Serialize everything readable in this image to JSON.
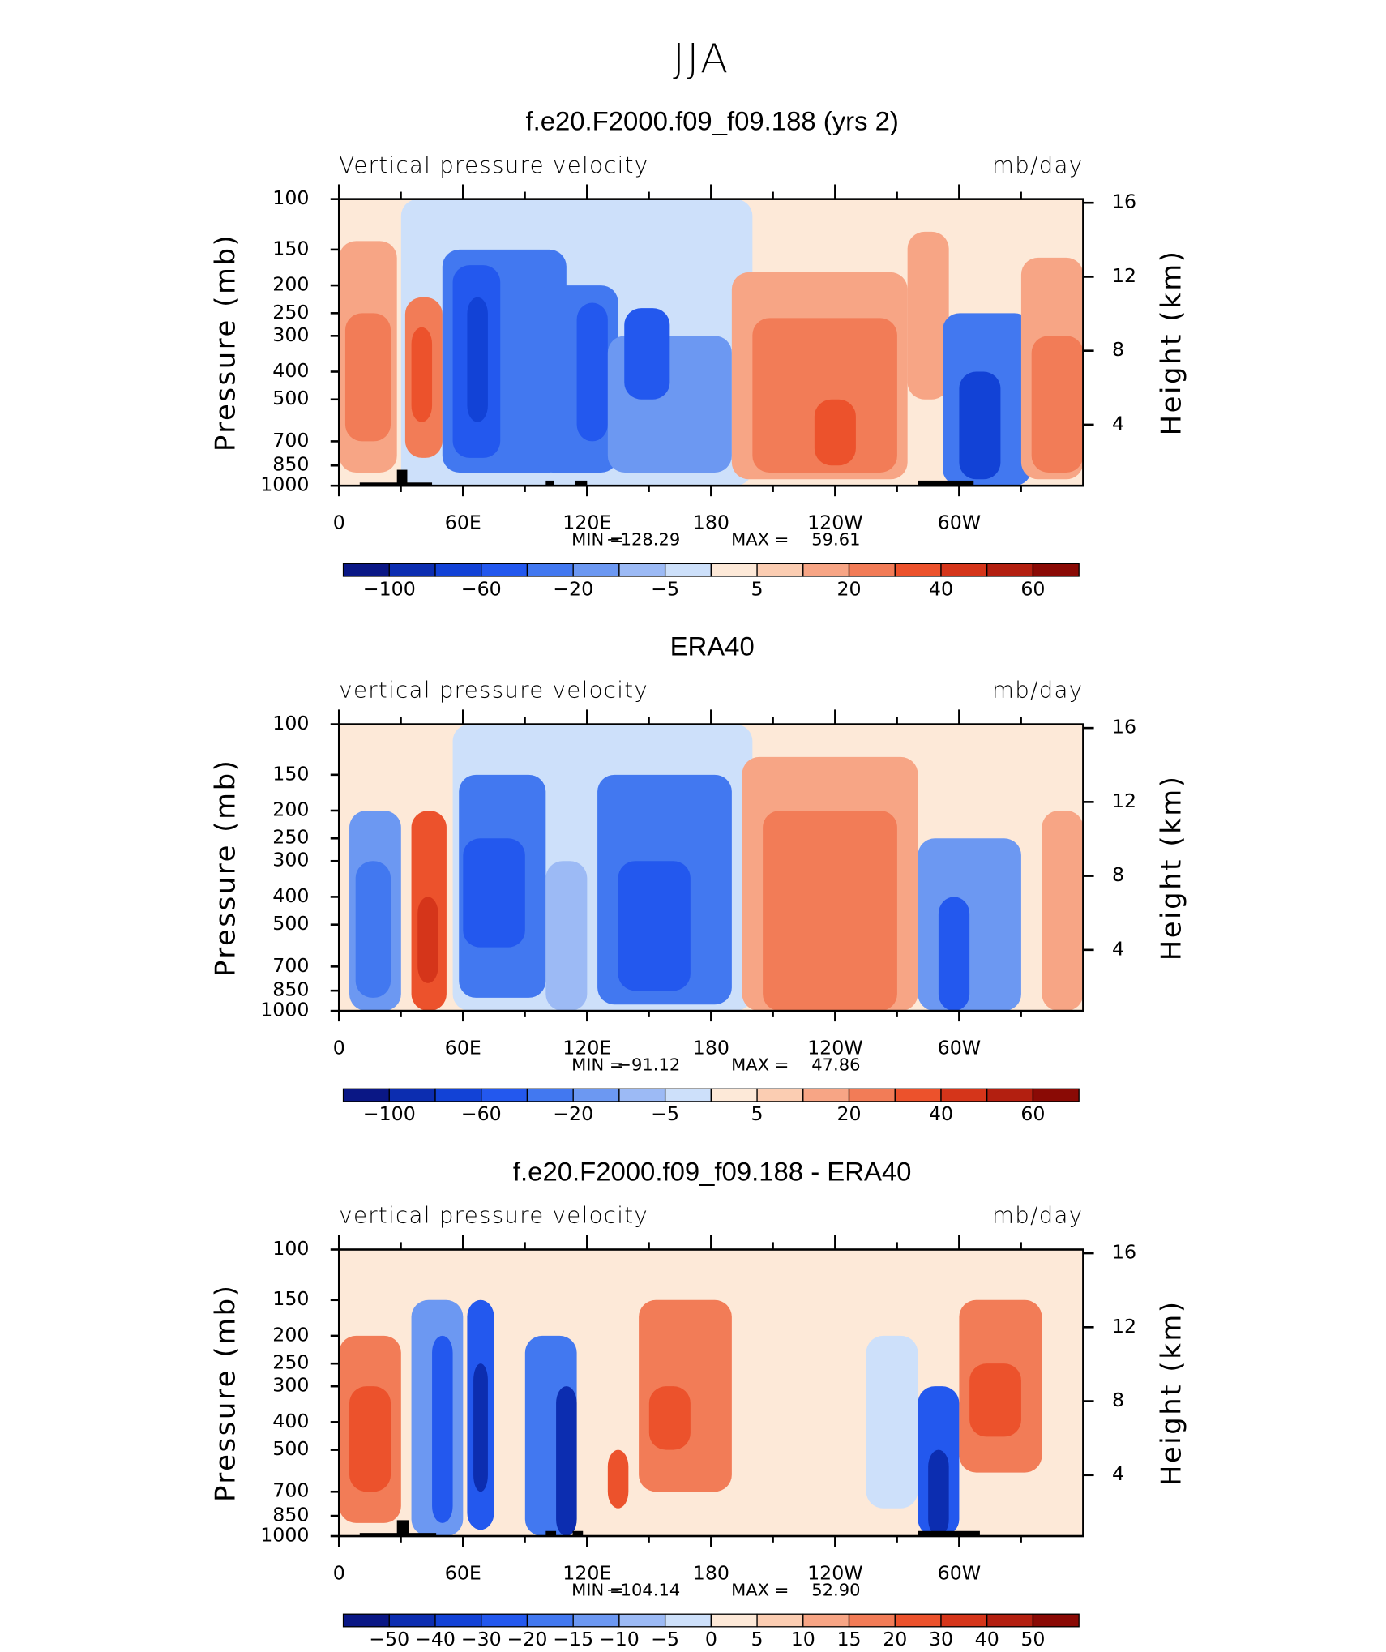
{
  "title": "JJA",
  "chart_data": [
    {
      "type": "contour",
      "title": "f.e20.F2000.f09_f09.188 (yrs 2)",
      "long_name": "Vertical pressure velocity",
      "units": "mb/day",
      "ylabel": "Pressure (mb)",
      "y2label": "Height (km)",
      "xlim": [
        0,
        360
      ],
      "xticks": [
        0,
        {
          "value": 60,
          "label": "60E"
        },
        {
          "value": 120,
          "label": "120E"
        },
        180,
        {
          "value": 240,
          "label": "120W"
        },
        {
          "value": 300,
          "label": "60W"
        }
      ],
      "xminor": [
        30,
        90,
        150,
        210,
        270,
        330
      ],
      "ylim": [
        1000,
        100
      ],
      "y_scale": "log",
      "yticks": [
        100,
        150,
        200,
        250,
        300,
        400,
        500,
        700,
        850,
        1000
      ],
      "y2lim": [
        0.7,
        16.2
      ],
      "y2ticks": [
        4,
        8,
        12,
        16
      ],
      "stats": [
        {
          "name": "MIN =",
          "value": -128.29,
          "label": "−128.29"
        },
        {
          "name": "MAX =",
          "value": 59.61,
          "label": "59.61"
        }
      ],
      "colorbar": {
        "colors": [
          "#0a1785",
          "#0c2db0",
          "#1242d6",
          "#2358ee",
          "#4278f0",
          "#6c98f2",
          "#9cbaf5",
          "#cde0fa",
          "#fde9d8",
          "#fbcdb2",
          "#f7a585",
          "#f27c57",
          "#ec522c",
          "#d5351a",
          "#b31f10",
          "#8a0a05"
        ],
        "labels": [
          {
            "value": -100,
            "label": "−100"
          },
          {
            "value": -60,
            "label": "−60"
          },
          {
            "value": -20,
            "label": "−20"
          },
          {
            "value": -5,
            "label": "−5"
          },
          5,
          20,
          40,
          60
        ]
      }
    },
    {
      "type": "contour",
      "title": "ERA40",
      "long_name": "vertical pressure velocity",
      "units": "mb/day",
      "ylabel": "Pressure (mb)",
      "y2label": "Height (km)",
      "xlim": [
        0,
        360
      ],
      "xticks": [
        0,
        {
          "value": 60,
          "label": "60E"
        },
        {
          "value": 120,
          "label": "120E"
        },
        180,
        {
          "value": 240,
          "label": "120W"
        },
        {
          "value": 300,
          "label": "60W"
        }
      ],
      "xminor": [
        30,
        90,
        150,
        210,
        270,
        330
      ],
      "ylim": [
        1000,
        100
      ],
      "y_scale": "log",
      "yticks": [
        100,
        150,
        200,
        250,
        300,
        400,
        500,
        700,
        850,
        1000
      ],
      "y2lim": [
        0.7,
        16.2
      ],
      "y2ticks": [
        4,
        8,
        12,
        16
      ],
      "stats": [
        {
          "name": "MIN =",
          "value": -91.12,
          "label": "−91.12"
        },
        {
          "name": "MAX =",
          "value": 47.86,
          "label": "47.86"
        }
      ],
      "colorbar": {
        "colors": [
          "#0a1785",
          "#0c2db0",
          "#1242d6",
          "#2358ee",
          "#4278f0",
          "#6c98f2",
          "#9cbaf5",
          "#cde0fa",
          "#fde9d8",
          "#fbcdb2",
          "#f7a585",
          "#f27c57",
          "#ec522c",
          "#d5351a",
          "#b31f10",
          "#8a0a05"
        ],
        "labels": [
          {
            "value": -100,
            "label": "−100"
          },
          {
            "value": -60,
            "label": "−60"
          },
          {
            "value": -20,
            "label": "−20"
          },
          {
            "value": -5,
            "label": "−5"
          },
          5,
          20,
          40,
          60
        ]
      }
    },
    {
      "type": "contour",
      "title": "f.e20.F2000.f09_f09.188 - ERA40",
      "long_name": "vertical pressure velocity",
      "units": "mb/day",
      "ylabel": "Pressure (mb)",
      "y2label": "Height (km)",
      "xlim": [
        0,
        360
      ],
      "xticks": [
        0,
        {
          "value": 60,
          "label": "60E"
        },
        {
          "value": 120,
          "label": "120E"
        },
        180,
        {
          "value": 240,
          "label": "120W"
        },
        {
          "value": 300,
          "label": "60W"
        }
      ],
      "xminor": [
        30,
        90,
        150,
        210,
        270,
        330
      ],
      "ylim": [
        1000,
        100
      ],
      "y_scale": "log",
      "yticks": [
        100,
        150,
        200,
        250,
        300,
        400,
        500,
        700,
        850,
        1000
      ],
      "y2lim": [
        0.7,
        16.2
      ],
      "y2ticks": [
        4,
        8,
        12,
        16
      ],
      "stats": [
        {
          "name": "MIN =",
          "value": -104.14,
          "label": "−104.14"
        },
        {
          "name": "MAX =",
          "value": 52.9,
          "label": "52.90"
        }
      ],
      "colorbar": {
        "colors": [
          "#0a1785",
          "#0c2db0",
          "#1242d6",
          "#2358ee",
          "#4278f0",
          "#6c98f2",
          "#9cbaf5",
          "#cde0fa",
          "#fde9d8",
          "#fbcdb2",
          "#f7a585",
          "#f27c57",
          "#ec522c",
          "#d5351a",
          "#b31f10",
          "#8a0a05"
        ],
        "labels": [
          {
            "value": -50,
            "label": "−50"
          },
          {
            "value": -40,
            "label": "−40"
          },
          {
            "value": -30,
            "label": "−30"
          },
          {
            "value": -20,
            "label": "−20"
          },
          {
            "value": -15,
            "label": "−15"
          },
          {
            "value": -10,
            "label": "−10"
          },
          {
            "value": -5,
            "label": "−5"
          },
          0,
          5,
          10,
          15,
          20,
          30,
          40,
          50
        ]
      }
    }
  ]
}
